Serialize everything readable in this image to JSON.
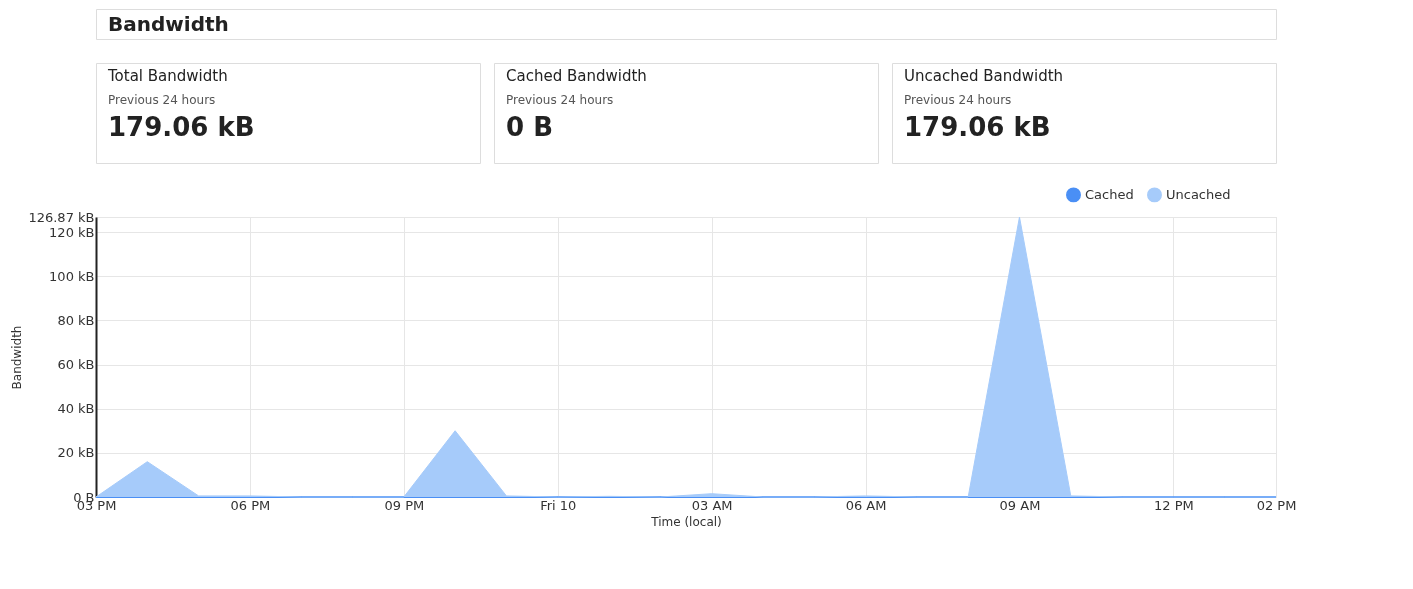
{
  "chart_data": [
    {
      "type": "other",
      "title": "Bandwidth"
    },
    {
      "type": "other",
      "title": "Total Bandwidth",
      "subtitle": "Previous 24 hours",
      "annotations": [
        "179.06 kB"
      ]
    },
    {
      "type": "other",
      "title": "Cached Bandwidth",
      "subtitle": "Previous 24 hours",
      "annotations": [
        "0 B"
      ]
    },
    {
      "type": "other",
      "title": "Uncached Bandwidth",
      "subtitle": "Previous 24 hours",
      "annotations": [
        "179.06 kB"
      ]
    },
    {
      "type": "area",
      "xlabel": "Time (local)",
      "ylabel": "Bandwidth",
      "categories": [
        "03 PM",
        null,
        null,
        "06 PM",
        null,
        null,
        "09 PM",
        null,
        null,
        "Fri 10",
        null,
        null,
        "03 AM",
        null,
        null,
        "06 AM",
        null,
        null,
        "09 AM",
        null,
        null,
        "12 PM",
        null,
        "02 PM"
      ],
      "series": [
        {
          "name": "Cached",
          "type": "line",
          "color": "#4a8ff5",
          "values": [
            0,
            0,
            0,
            0,
            0,
            0,
            0,
            0,
            0,
            0,
            0,
            0,
            0,
            0,
            0,
            0,
            0,
            0,
            0,
            0,
            0,
            0,
            0,
            0
          ]
        },
        {
          "name": "Uncached",
          "color": "#a6cbfa",
          "values": [
            0,
            16,
            0.5,
            0.5,
            0,
            0,
            0,
            30,
            0.5,
            0,
            0.3,
            0,
            1.5,
            0,
            0,
            0.5,
            0,
            0,
            126.87,
            0.5,
            0,
            0,
            0,
            0
          ]
        }
      ],
      "ylim": [
        0,
        126.87
      ],
      "yticks": [
        {
          "value": 0,
          "label": "0 B"
        },
        {
          "value": 20,
          "label": "20 kB"
        },
        {
          "value": 40,
          "label": "40 kB"
        },
        {
          "value": 60,
          "label": "60 kB"
        },
        {
          "value": 80,
          "label": "80 kB"
        },
        {
          "value": 100,
          "label": "100 kB"
        },
        {
          "value": 120,
          "label": "120 kB"
        },
        {
          "value": 126.87,
          "label": "126.87 kB"
        }
      ],
      "grid": true,
      "legend": "top right",
      "marker": "none"
    }
  ]
}
